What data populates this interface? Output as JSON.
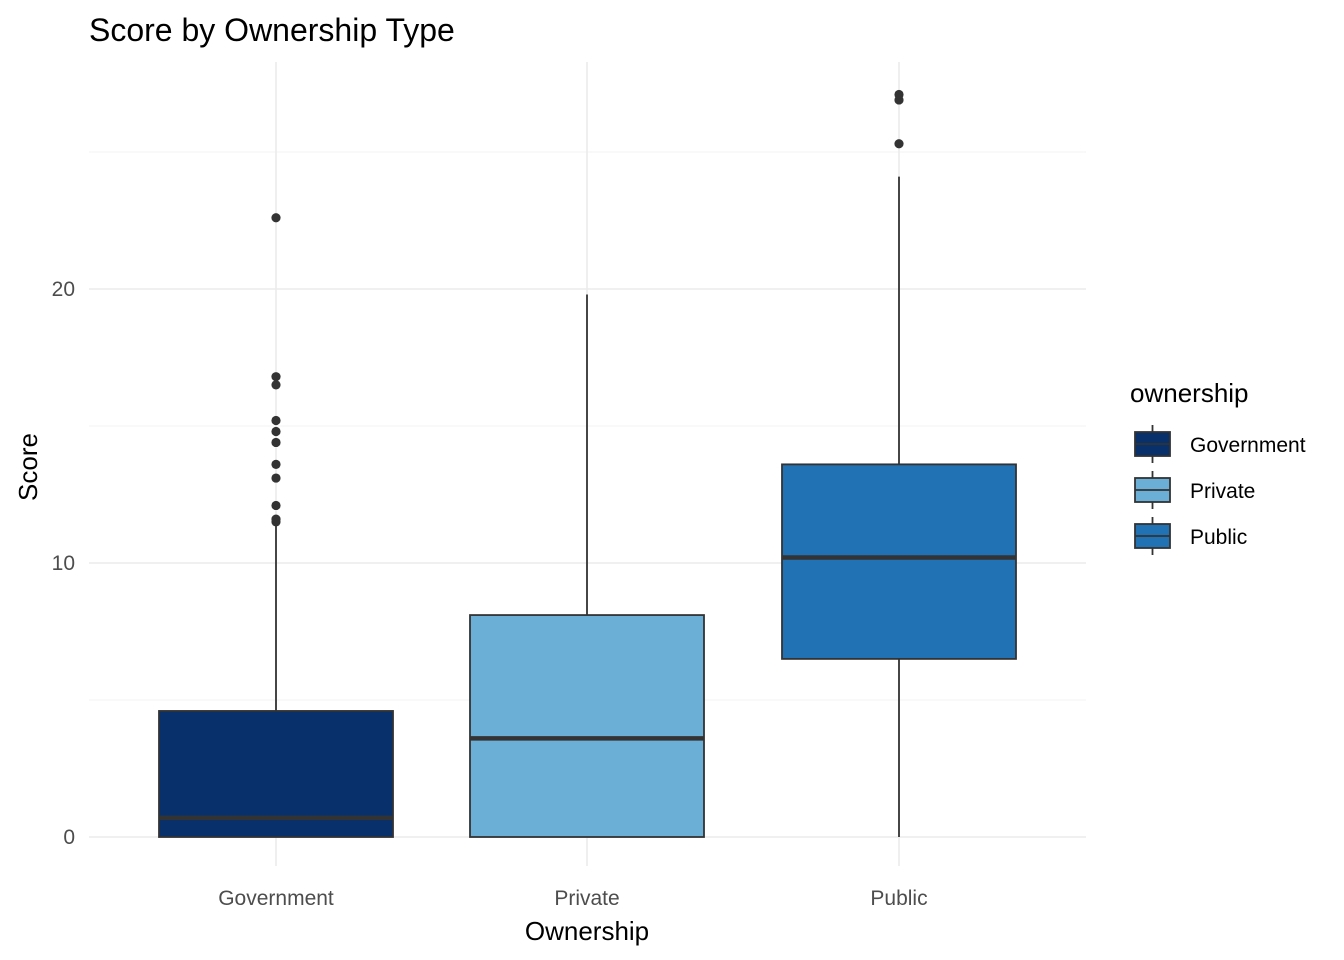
{
  "chart_data": {
    "type": "boxplot",
    "title": "Score by Ownership Type",
    "xlabel": "Ownership",
    "ylabel": "Score",
    "ylim": [
      -1,
      28
    ],
    "y_ticks": [
      0,
      10,
      20
    ],
    "y_minor_ticks": [
      5,
      15,
      25
    ],
    "grid": true,
    "legend": {
      "title": "ownership",
      "position": "right"
    },
    "categories": [
      "Government",
      "Private",
      "Public"
    ],
    "series": [
      {
        "name": "Government",
        "color": "#08306b",
        "whisker_low": 0,
        "q1": 0,
        "median": 0.7,
        "q3": 4.6,
        "whisker_high": 11.4,
        "outliers": [
          11.5,
          11.6,
          12.1,
          13.1,
          13.6,
          14.4,
          14.8,
          15.2,
          16.5,
          16.8,
          22.6
        ]
      },
      {
        "name": "Private",
        "color": "#6baed6",
        "whisker_low": 0,
        "q1": 0,
        "median": 3.6,
        "q3": 8.1,
        "whisker_high": 19.8,
        "outliers": []
      },
      {
        "name": "Public",
        "color": "#2171b5",
        "whisker_low": 0,
        "q1": 6.5,
        "median": 10.2,
        "q3": 13.6,
        "whisker_high": 24.1,
        "outliers": [
          25.3,
          26.9,
          27.1
        ]
      }
    ]
  }
}
